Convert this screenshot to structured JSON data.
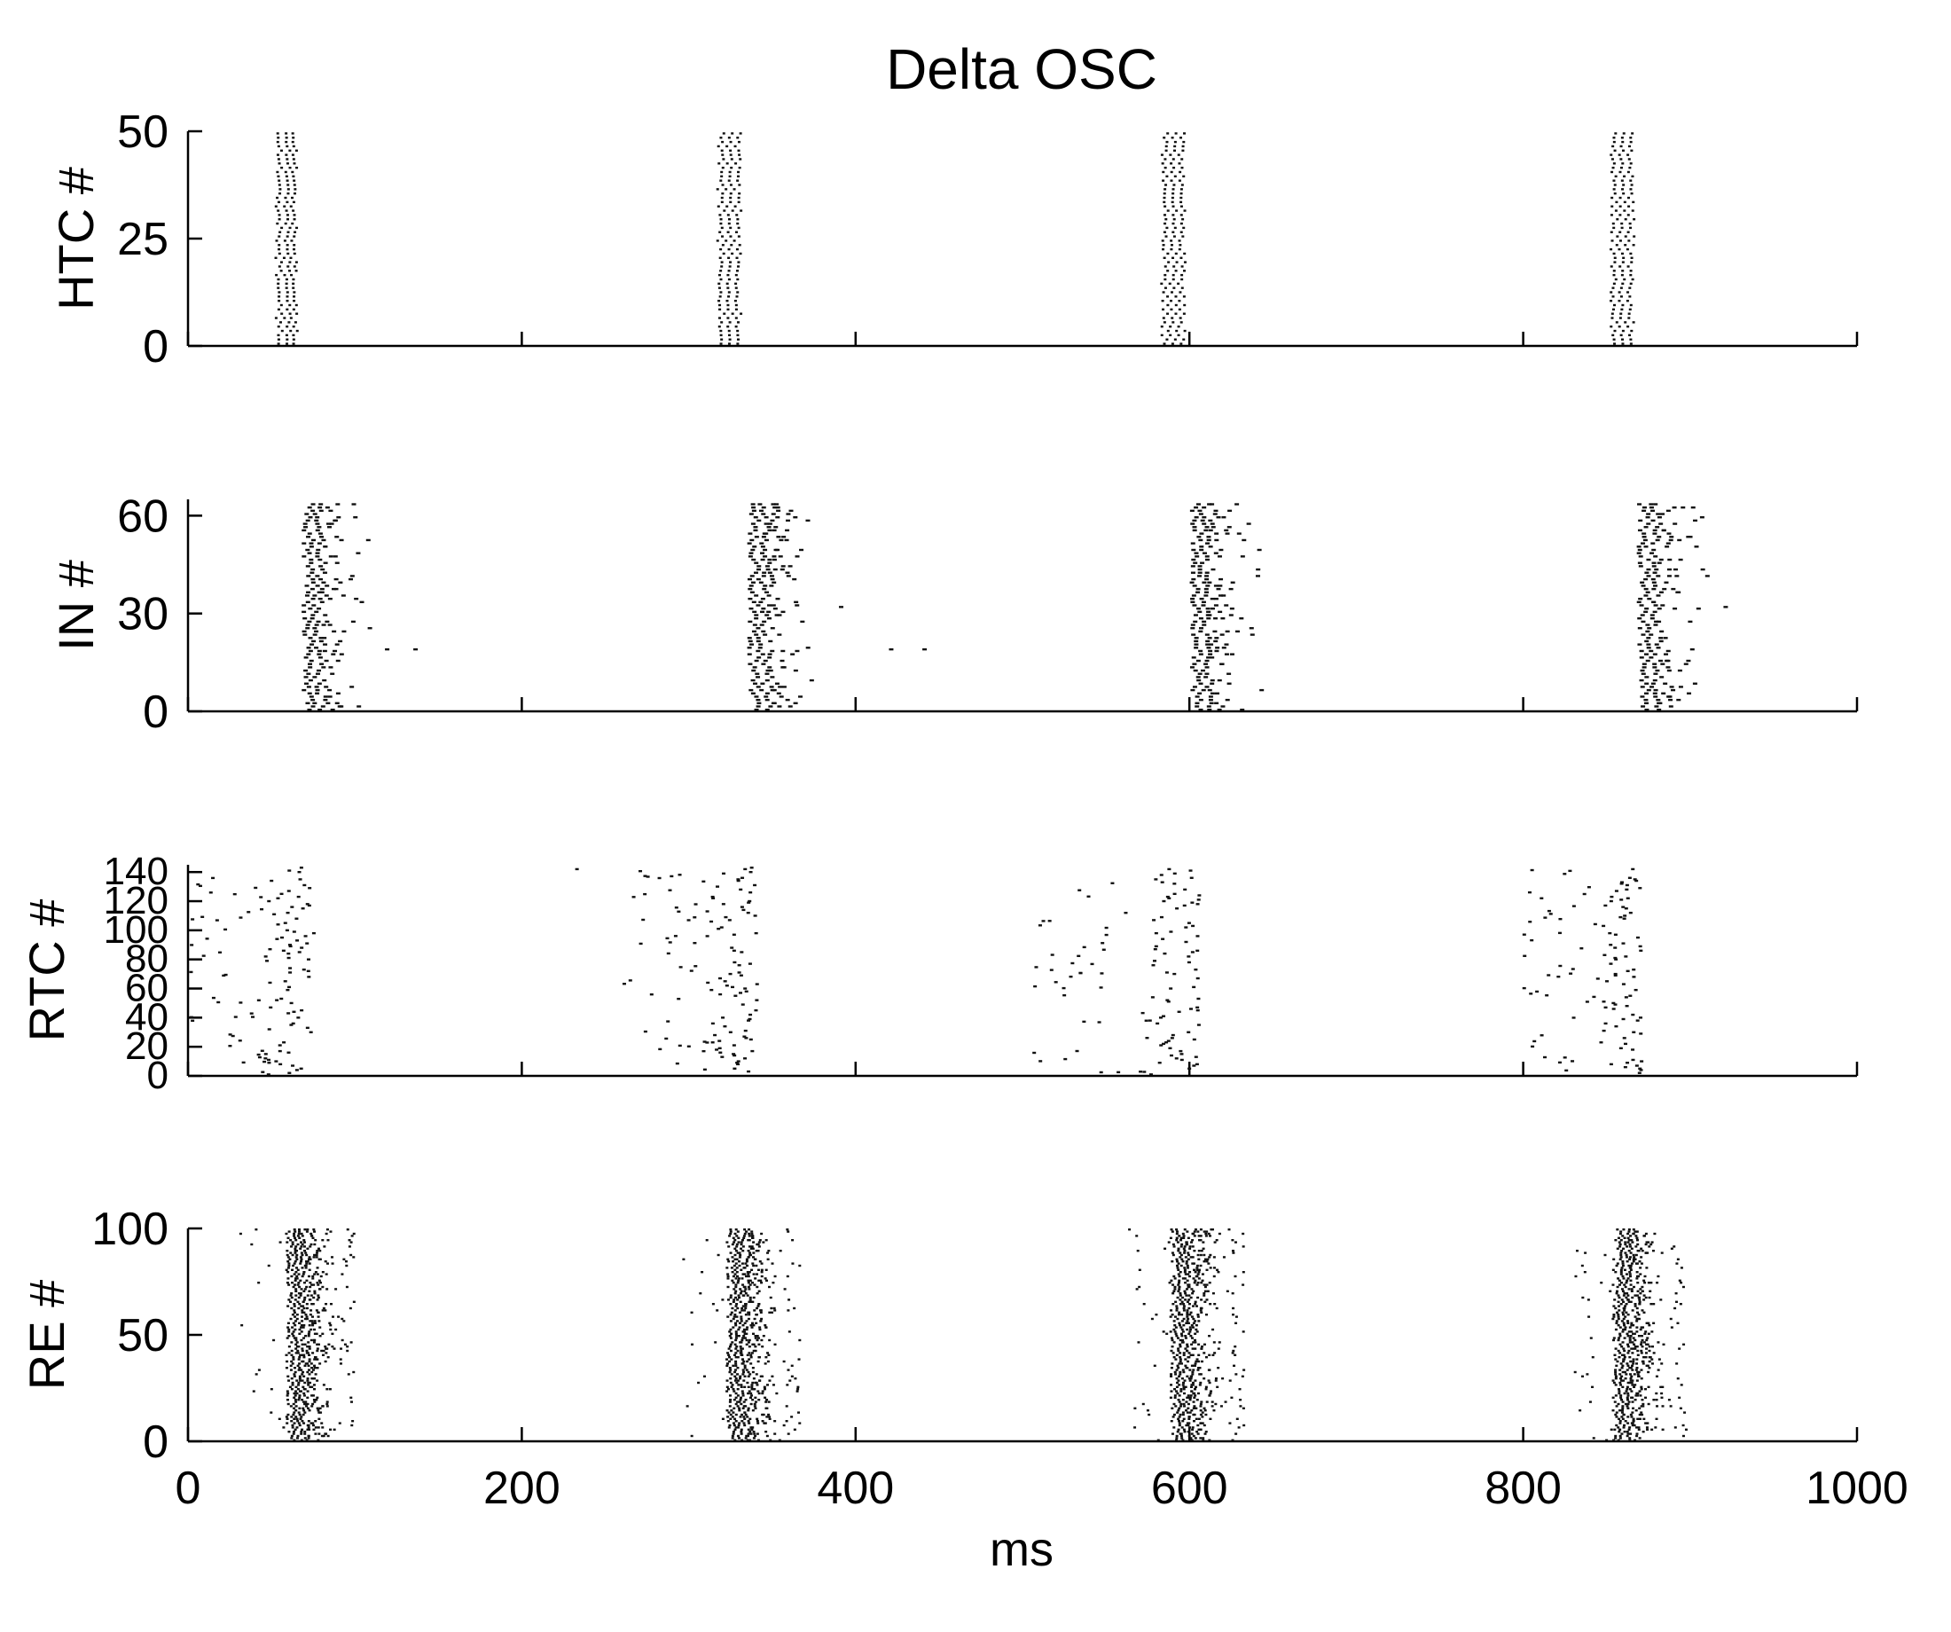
{
  "figure": {
    "title": "Delta OSC",
    "xlabel": "ms"
  },
  "chart_data": {
    "type": "raster",
    "title": "Delta OSC",
    "xlabel": "ms",
    "xlim": [
      0,
      1000
    ],
    "xticks": [
      0,
      200,
      400,
      600,
      800,
      1000
    ],
    "grid": false,
    "legend": "none",
    "burst_times_ms": [
      60,
      325,
      590,
      858
    ],
    "panels": [
      {
        "id": "htc",
        "ylabel": "HTC #",
        "ylim": [
          0,
          50
        ],
        "yticks": [
          0,
          25,
          50
        ],
        "n_cells": 50,
        "spike_times_per_burst_ms": [
          [
            53,
            58,
            62
          ],
          [
            318,
            323,
            328
          ],
          [
            584,
            589,
            594
          ],
          [
            853,
            858,
            863
          ]
        ]
      },
      {
        "id": "in",
        "ylabel": "IN #",
        "ylim": [
          0,
          65
        ],
        "yticks": [
          0,
          30,
          60
        ],
        "n_cells": 64,
        "burst_window_ms": [
          [
            68,
            95
          ],
          [
            335,
            362
          ],
          [
            600,
            628
          ],
          [
            868,
            895
          ]
        ],
        "isolated_spikes": [
          {
            "t": 118,
            "cell": 19
          },
          {
            "t": 135,
            "cell": 19
          },
          {
            "t": 420,
            "cell": 19
          },
          {
            "t": 440,
            "cell": 19
          },
          {
            "t": 390,
            "cell": 32
          },
          {
            "t": 920,
            "cell": 32
          },
          {
            "t": 900,
            "cell": 19
          }
        ]
      },
      {
        "id": "rtc",
        "ylabel": "RTC #",
        "ylim": [
          0,
          145
        ],
        "yticks": [
          0,
          20,
          40,
          60,
          80,
          100,
          120,
          140
        ],
        "n_cells": 144,
        "burst_window_ms": [
          [
            45,
            75
          ],
          [
            310,
            340
          ],
          [
            575,
            605
          ],
          [
            845,
            870
          ]
        ],
        "scatter_window_ms": [
          [
            0,
            45
          ],
          [
            260,
            310
          ],
          [
            505,
            575
          ],
          [
            795,
            845
          ]
        ],
        "isolated_spikes": [
          {
            "t": 232,
            "cell": 142
          }
        ]
      },
      {
        "id": "re",
        "ylabel": "RE #",
        "ylim": [
          0,
          100
        ],
        "yticks": [
          0,
          50,
          100
        ],
        "n_cells": 100,
        "burst_window_ms": [
          [
            58,
            95
          ],
          [
            322,
            362
          ],
          [
            588,
            628
          ],
          [
            853,
            893
          ]
        ],
        "lead_spike_ms": [
          [
            30,
            58
          ],
          [
            295,
            322
          ],
          [
            563,
            588
          ],
          [
            830,
            853
          ]
        ]
      }
    ]
  }
}
